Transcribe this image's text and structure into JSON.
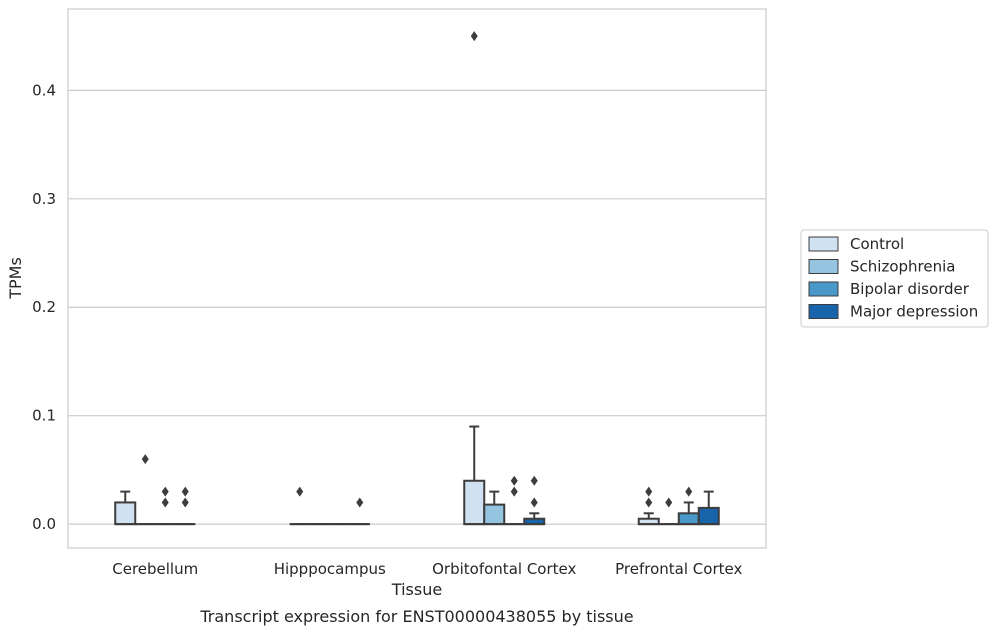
{
  "chart_data": {
    "type": "box",
    "title": "",
    "caption": "Transcript expression for ENST00000438055 by tissue",
    "xlabel": "Tissue",
    "ylabel": "TPMs",
    "ylim": [
      -0.022,
      0.475
    ],
    "yticks": [
      0.0,
      0.1,
      0.2,
      0.3,
      0.4
    ],
    "ytick_labels": [
      "0.0",
      "0.1",
      "0.2",
      "0.3",
      "0.4"
    ],
    "grid": "horizontal",
    "legend_position": "right",
    "categories": [
      "Cerebellum",
      "Hipppocampus",
      "Orbitofontal Cortex",
      "Prefrontal Cortex"
    ],
    "series": [
      {
        "name": "Control",
        "color": "#d0e1f2",
        "boxes": [
          {
            "q1": 0.0,
            "median": 0.0,
            "q3": 0.02,
            "whisker_low": 0.0,
            "whisker_high": 0.03,
            "outliers": []
          },
          {
            "q1": 0.0,
            "median": 0.0,
            "q3": 0.0,
            "whisker_low": 0.0,
            "whisker_high": 0.0,
            "outliers": [
              0.03
            ]
          },
          {
            "q1": 0.0,
            "median": 0.0,
            "q3": 0.04,
            "whisker_low": 0.0,
            "whisker_high": 0.09,
            "outliers": [
              0.45
            ]
          },
          {
            "q1": 0.0,
            "median": 0.0,
            "q3": 0.005,
            "whisker_low": 0.0,
            "whisker_high": 0.01,
            "outliers": [
              0.02,
              0.03
            ]
          }
        ]
      },
      {
        "name": "Schizophrenia",
        "color": "#94c4df",
        "boxes": [
          {
            "q1": 0.0,
            "median": 0.0,
            "q3": 0.0,
            "whisker_low": 0.0,
            "whisker_high": 0.0,
            "outliers": [
              0.06
            ]
          },
          {
            "q1": 0.0,
            "median": 0.0,
            "q3": 0.0,
            "whisker_low": 0.0,
            "whisker_high": 0.0,
            "outliers": []
          },
          {
            "q1": 0.0,
            "median": 0.0,
            "q3": 0.018,
            "whisker_low": 0.0,
            "whisker_high": 0.03,
            "outliers": []
          },
          {
            "q1": 0.0,
            "median": 0.0,
            "q3": 0.0,
            "whisker_low": 0.0,
            "whisker_high": 0.0,
            "outliers": [
              0.02
            ]
          }
        ]
      },
      {
        "name": "Bipolar disorder",
        "color": "#4a98c9",
        "boxes": [
          {
            "q1": 0.0,
            "median": 0.0,
            "q3": 0.0,
            "whisker_low": 0.0,
            "whisker_high": 0.0,
            "outliers": [
              0.02,
              0.03
            ]
          },
          {
            "q1": 0.0,
            "median": 0.0,
            "q3": 0.0,
            "whisker_low": 0.0,
            "whisker_high": 0.0,
            "outliers": []
          },
          {
            "q1": 0.0,
            "median": 0.0,
            "q3": 0.0,
            "whisker_low": 0.0,
            "whisker_high": 0.0,
            "outliers": [
              0.03,
              0.04
            ]
          },
          {
            "q1": 0.0,
            "median": 0.0,
            "q3": 0.01,
            "whisker_low": 0.0,
            "whisker_high": 0.02,
            "outliers": [
              0.03
            ]
          }
        ]
      },
      {
        "name": "Major depression",
        "color": "#1764ab",
        "boxes": [
          {
            "q1": 0.0,
            "median": 0.0,
            "q3": 0.0,
            "whisker_low": 0.0,
            "whisker_high": 0.0,
            "outliers": [
              0.02,
              0.03
            ]
          },
          {
            "q1": 0.0,
            "median": 0.0,
            "q3": 0.0,
            "whisker_low": 0.0,
            "whisker_high": 0.0,
            "outliers": [
              0.02
            ]
          },
          {
            "q1": 0.0,
            "median": 0.0,
            "q3": 0.005,
            "whisker_low": 0.0,
            "whisker_high": 0.01,
            "outliers": [
              0.02,
              0.04
            ]
          },
          {
            "q1": 0.0,
            "median": 0.0,
            "q3": 0.015,
            "whisker_low": 0.0,
            "whisker_high": 0.03,
            "outliers": []
          }
        ]
      }
    ]
  }
}
